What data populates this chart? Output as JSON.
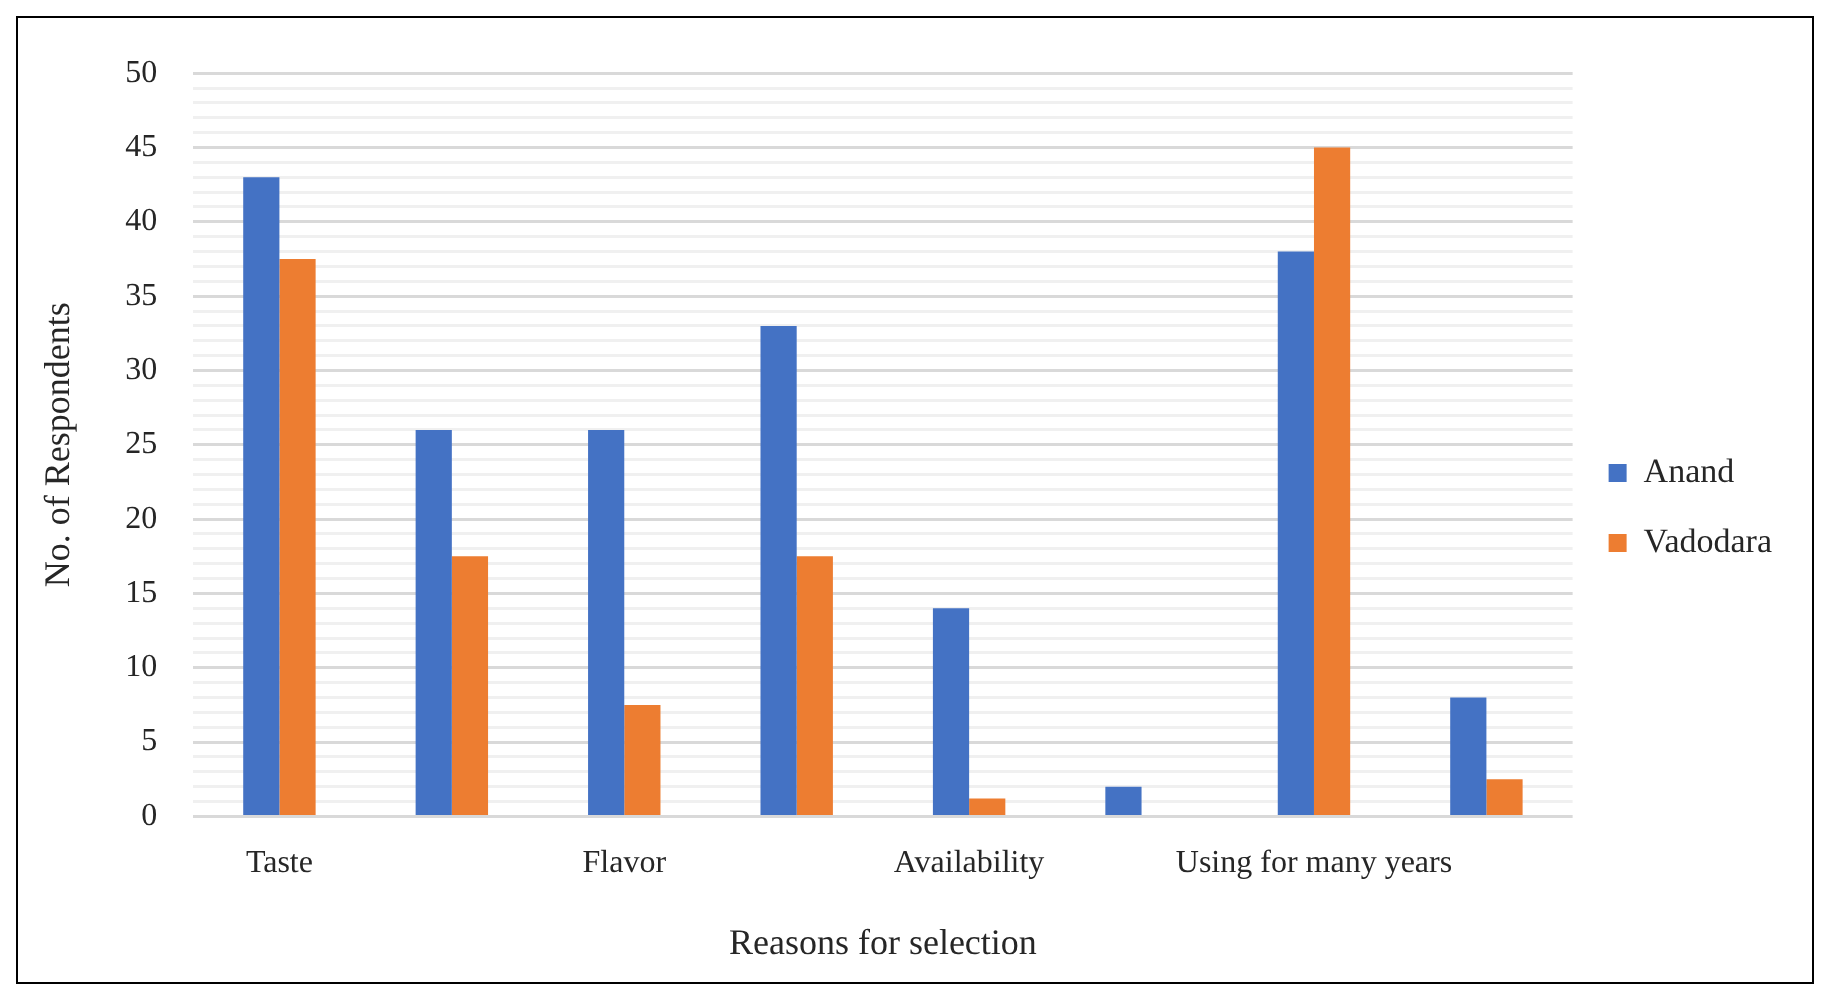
{
  "chart_data": {
    "type": "bar",
    "xlabel": "Reasons for selection",
    "ylabel": "No. of Respondents",
    "categories": [
      "Taste",
      null,
      "Flavor",
      null,
      "Availability",
      null,
      "Using for many years",
      null
    ],
    "series": [
      {
        "name": "Anand",
        "color": "#4472c4",
        "values": [
          43,
          26,
          26,
          33,
          14,
          2,
          38,
          8
        ]
      },
      {
        "name": "Vadodara",
        "color": "#ed7d31",
        "values": [
          37.5,
          17.5,
          7.5,
          17.5,
          1.2,
          0,
          45,
          2.5
        ]
      }
    ],
    "ylim": [
      0,
      50
    ],
    "yticks": [
      0,
      {
        "value": 1,
        "label": null
      },
      {
        "value": 2,
        "label": null
      },
      {
        "value": 3,
        "label": null
      },
      {
        "value": 4,
        "label": null
      },
      5,
      {
        "value": 6,
        "label": null
      },
      {
        "value": 7,
        "label": null
      },
      {
        "value": 8,
        "label": null
      },
      {
        "value": 9,
        "label": null
      },
      10,
      {
        "value": 11,
        "label": null
      },
      {
        "value": 12,
        "label": null
      },
      {
        "value": 13,
        "label": null
      },
      {
        "value": 14,
        "label": null
      },
      15,
      {
        "value": 16,
        "label": null
      },
      {
        "value": 17,
        "label": null
      },
      {
        "value": 18,
        "label": null
      },
      {
        "value": 19,
        "label": null
      },
      20,
      {
        "value": 21,
        "label": null
      },
      {
        "value": 22,
        "label": null
      },
      {
        "value": 23,
        "label": null
      },
      {
        "value": 24,
        "label": null
      },
      25,
      {
        "value": 26,
        "label": null
      },
      {
        "value": 27,
        "label": null
      },
      {
        "value": 28,
        "label": null
      },
      {
        "value": 29,
        "label": null
      },
      30,
      {
        "value": 31,
        "label": null
      },
      {
        "value": 32,
        "label": null
      },
      {
        "value": 33,
        "label": null
      },
      {
        "value": 34,
        "label": null
      },
      35,
      {
        "value": 36,
        "label": null
      },
      {
        "value": 37,
        "label": null
      },
      {
        "value": 38,
        "label": null
      },
      {
        "value": 39,
        "label": null
      },
      40,
      {
        "value": 41,
        "label": null
      },
      {
        "value": 42,
        "label": null
      },
      {
        "value": 43,
        "label": null
      },
      {
        "value": 44,
        "label": null
      },
      45,
      {
        "value": 46,
        "label": null
      },
      {
        "value": 47,
        "label": null
      },
      {
        "value": 48,
        "label": null
      },
      {
        "value": 49,
        "label": null
      },
      50
    ],
    "grid": "y",
    "legend": "right"
  }
}
